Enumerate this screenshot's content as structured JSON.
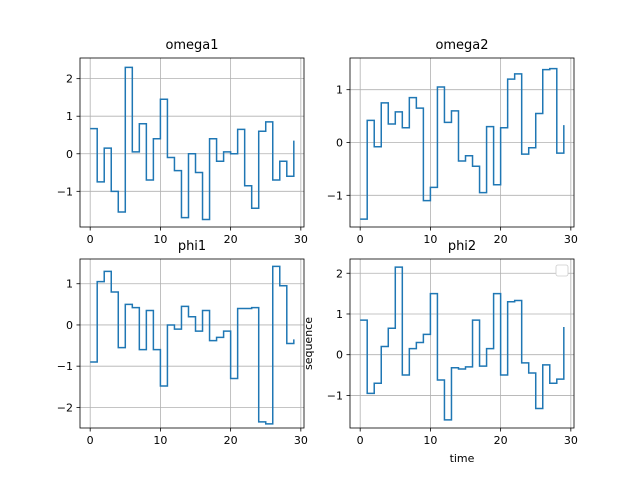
{
  "chart_data": [
    {
      "type": "line",
      "drawstyle": "steps-post",
      "title": "omega1",
      "xlabel": "",
      "ylabel": "",
      "grid": true,
      "color": "#1f77b4",
      "xlim": [
        -1.45,
        30.45
      ],
      "ylim": [
        -1.95,
        2.55
      ],
      "xticks": [
        0,
        10,
        20,
        30
      ],
      "yticks": [
        -1,
        0,
        1,
        2
      ],
      "x": [
        0,
        1,
        2,
        3,
        4,
        5,
        6,
        7,
        8,
        9,
        10,
        11,
        12,
        13,
        14,
        15,
        16,
        17,
        18,
        19,
        20,
        21,
        22,
        23,
        24,
        25,
        26,
        27,
        28,
        29
      ],
      "values": [
        0.67,
        -0.75,
        0.15,
        -1.0,
        -1.55,
        2.3,
        0.05,
        0.8,
        -0.7,
        0.4,
        1.45,
        -0.1,
        -0.45,
        -1.7,
        0.0,
        -0.5,
        -1.75,
        0.4,
        -0.2,
        0.05,
        0.0,
        0.65,
        -0.85,
        -1.45,
        0.6,
        0.85,
        -0.7,
        -0.2,
        -0.6,
        0.35
      ]
    },
    {
      "type": "line",
      "drawstyle": "steps-post",
      "title": "omega2",
      "xlabel": "",
      "ylabel": "",
      "grid": true,
      "color": "#1f77b4",
      "xlim": [
        -1.45,
        30.45
      ],
      "ylim": [
        -1.6,
        1.6
      ],
      "xticks": [
        0,
        10,
        20,
        30
      ],
      "yticks": [
        -1,
        0,
        1
      ],
      "x": [
        0,
        1,
        2,
        3,
        4,
        5,
        6,
        7,
        8,
        9,
        10,
        11,
        12,
        13,
        14,
        15,
        16,
        17,
        18,
        19,
        20,
        21,
        22,
        23,
        24,
        25,
        26,
        27,
        28,
        29
      ],
      "values": [
        -1.45,
        0.42,
        -0.08,
        0.75,
        0.35,
        0.58,
        0.28,
        0.85,
        0.65,
        -1.1,
        -0.85,
        1.05,
        0.38,
        0.6,
        -0.35,
        -0.25,
        -0.45,
        -0.95,
        0.3,
        -0.8,
        0.28,
        1.2,
        1.3,
        -0.22,
        -0.1,
        0.55,
        1.38,
        1.4,
        -0.2,
        0.33
      ]
    },
    {
      "type": "line",
      "drawstyle": "steps-post",
      "title": "phi1",
      "xlabel": "",
      "ylabel": "",
      "grid": true,
      "color": "#1f77b4",
      "xlim": [
        -1.45,
        30.45
      ],
      "ylim": [
        -2.5,
        1.6
      ],
      "xticks": [
        0,
        10,
        20,
        30
      ],
      "yticks": [
        -2,
        -1,
        0,
        1
      ],
      "x": [
        0,
        1,
        2,
        3,
        4,
        5,
        6,
        7,
        8,
        9,
        10,
        11,
        12,
        13,
        14,
        15,
        16,
        17,
        18,
        19,
        20,
        21,
        22,
        23,
        24,
        25,
        26,
        27,
        28,
        29
      ],
      "values": [
        -0.9,
        1.05,
        1.3,
        0.8,
        -0.55,
        0.5,
        0.42,
        -0.6,
        0.35,
        -0.6,
        -1.48,
        0.0,
        -0.1,
        0.45,
        0.2,
        -0.15,
        0.35,
        -0.38,
        -0.3,
        -0.15,
        -1.3,
        0.4,
        0.4,
        0.42,
        -2.35,
        -2.4,
        1.42,
        0.95,
        -0.45,
        -0.35
      ]
    },
    {
      "type": "line",
      "drawstyle": "steps-post",
      "title": "phi2",
      "xlabel": "time",
      "ylabel": "sequence",
      "grid": true,
      "legend": "top-right",
      "color": "#1f77b4",
      "xlim": [
        -1.45,
        30.45
      ],
      "ylim": [
        -1.8,
        2.35
      ],
      "xticks": [
        0,
        10,
        20,
        30
      ],
      "yticks": [
        -1,
        0,
        1,
        2
      ],
      "x": [
        0,
        1,
        2,
        3,
        4,
        5,
        6,
        7,
        8,
        9,
        10,
        11,
        12,
        13,
        14,
        15,
        16,
        17,
        18,
        19,
        20,
        21,
        22,
        23,
        24,
        25,
        26,
        27,
        28,
        29
      ],
      "values": [
        0.85,
        -0.95,
        -0.7,
        0.2,
        0.65,
        2.15,
        -0.5,
        0.15,
        0.3,
        0.5,
        1.5,
        -0.62,
        -1.6,
        -0.32,
        -0.35,
        -0.3,
        0.85,
        -0.28,
        0.15,
        1.5,
        -0.5,
        1.3,
        1.33,
        -0.2,
        -0.45,
        -1.32,
        -0.25,
        -0.7,
        -0.6,
        0.68
      ]
    }
  ]
}
